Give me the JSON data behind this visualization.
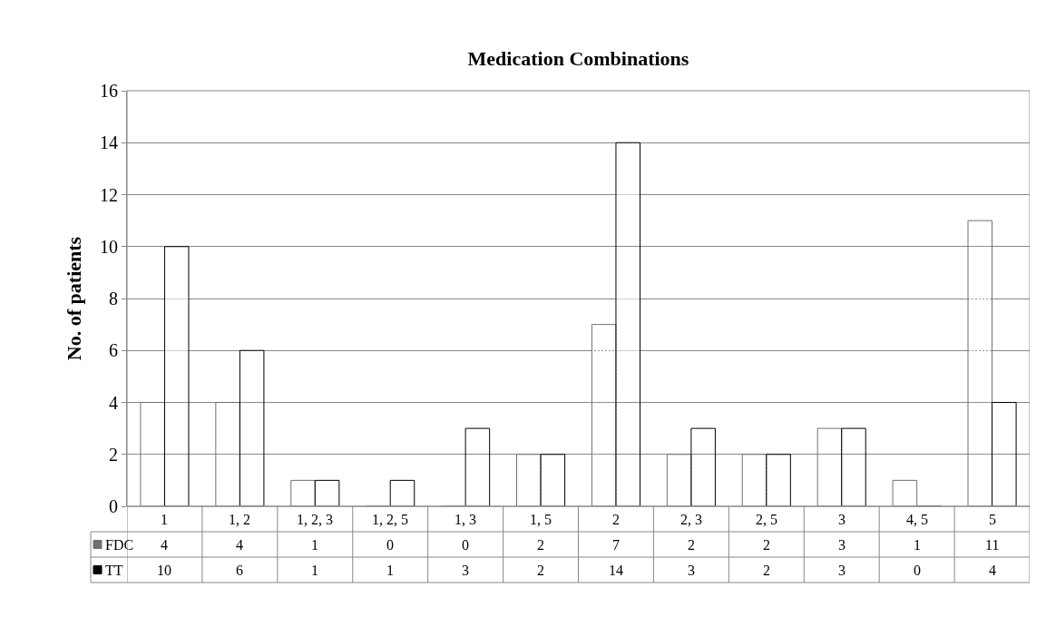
{
  "chart_data": {
    "type": "bar",
    "title": "Medication Combinations",
    "ylabel": "No. of patients",
    "categories": [
      "1",
      "1, 2",
      "1, 2, 3",
      "1, 2, 5",
      "1, 3",
      "1, 5",
      "2",
      "2, 3",
      "2, 5",
      "3",
      "4, 5",
      "5"
    ],
    "series": [
      {
        "name": "FDC",
        "color": "#707070",
        "values": [
          4,
          4,
          1,
          0,
          0,
          2,
          7,
          2,
          2,
          3,
          1,
          11
        ]
      },
      {
        "name": "TT",
        "color": "#000000",
        "values": [
          10,
          6,
          1,
          1,
          3,
          2,
          14,
          3,
          2,
          3,
          0,
          4
        ]
      }
    ],
    "ylim": [
      0,
      16
    ],
    "yticks": [
      0,
      2,
      4,
      6,
      8,
      10,
      12,
      14,
      16
    ],
    "grid": "y",
    "legend": "bottom left",
    "data_labels": true
  }
}
